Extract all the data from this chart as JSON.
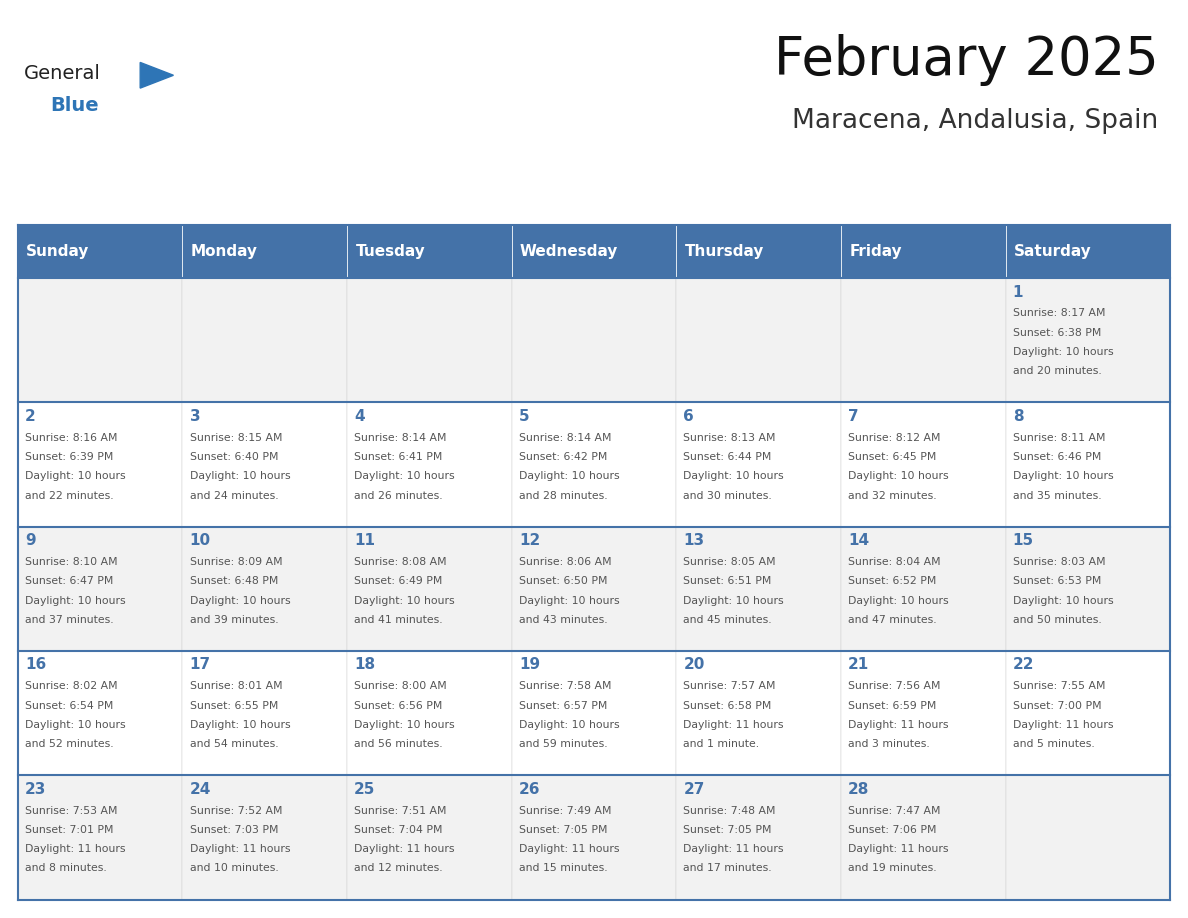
{
  "title": "February 2025",
  "subtitle": "Maracena, Andalusia, Spain",
  "header_bg": "#4472a8",
  "header_text_color": "#ffffff",
  "cell_bg_light": "#f2f2f2",
  "cell_bg_white": "#ffffff",
  "day_text_color": "#4472a8",
  "info_text_color": "#555555",
  "border_color": "#4472a8",
  "days_of_week": [
    "Sunday",
    "Monday",
    "Tuesday",
    "Wednesday",
    "Thursday",
    "Friday",
    "Saturday"
  ],
  "calendar_data": [
    [
      null,
      null,
      null,
      null,
      null,
      null,
      {
        "day": 1,
        "sunrise": "8:17 AM",
        "sunset": "6:38 PM",
        "daylight": "10 hours and 20 minutes."
      }
    ],
    [
      {
        "day": 2,
        "sunrise": "8:16 AM",
        "sunset": "6:39 PM",
        "daylight": "10 hours and 22 minutes."
      },
      {
        "day": 3,
        "sunrise": "8:15 AM",
        "sunset": "6:40 PM",
        "daylight": "10 hours and 24 minutes."
      },
      {
        "day": 4,
        "sunrise": "8:14 AM",
        "sunset": "6:41 PM",
        "daylight": "10 hours and 26 minutes."
      },
      {
        "day": 5,
        "sunrise": "8:14 AM",
        "sunset": "6:42 PM",
        "daylight": "10 hours and 28 minutes."
      },
      {
        "day": 6,
        "sunrise": "8:13 AM",
        "sunset": "6:44 PM",
        "daylight": "10 hours and 30 minutes."
      },
      {
        "day": 7,
        "sunrise": "8:12 AM",
        "sunset": "6:45 PM",
        "daylight": "10 hours and 32 minutes."
      },
      {
        "day": 8,
        "sunrise": "8:11 AM",
        "sunset": "6:46 PM",
        "daylight": "10 hours and 35 minutes."
      }
    ],
    [
      {
        "day": 9,
        "sunrise": "8:10 AM",
        "sunset": "6:47 PM",
        "daylight": "10 hours and 37 minutes."
      },
      {
        "day": 10,
        "sunrise": "8:09 AM",
        "sunset": "6:48 PM",
        "daylight": "10 hours and 39 minutes."
      },
      {
        "day": 11,
        "sunrise": "8:08 AM",
        "sunset": "6:49 PM",
        "daylight": "10 hours and 41 minutes."
      },
      {
        "day": 12,
        "sunrise": "8:06 AM",
        "sunset": "6:50 PM",
        "daylight": "10 hours and 43 minutes."
      },
      {
        "day": 13,
        "sunrise": "8:05 AM",
        "sunset": "6:51 PM",
        "daylight": "10 hours and 45 minutes."
      },
      {
        "day": 14,
        "sunrise": "8:04 AM",
        "sunset": "6:52 PM",
        "daylight": "10 hours and 47 minutes."
      },
      {
        "day": 15,
        "sunrise": "8:03 AM",
        "sunset": "6:53 PM",
        "daylight": "10 hours and 50 minutes."
      }
    ],
    [
      {
        "day": 16,
        "sunrise": "8:02 AM",
        "sunset": "6:54 PM",
        "daylight": "10 hours and 52 minutes."
      },
      {
        "day": 17,
        "sunrise": "8:01 AM",
        "sunset": "6:55 PM",
        "daylight": "10 hours and 54 minutes."
      },
      {
        "day": 18,
        "sunrise": "8:00 AM",
        "sunset": "6:56 PM",
        "daylight": "10 hours and 56 minutes."
      },
      {
        "day": 19,
        "sunrise": "7:58 AM",
        "sunset": "6:57 PM",
        "daylight": "10 hours and 59 minutes."
      },
      {
        "day": 20,
        "sunrise": "7:57 AM",
        "sunset": "6:58 PM",
        "daylight": "11 hours and 1 minute."
      },
      {
        "day": 21,
        "sunrise": "7:56 AM",
        "sunset": "6:59 PM",
        "daylight": "11 hours and 3 minutes."
      },
      {
        "day": 22,
        "sunrise": "7:55 AM",
        "sunset": "7:00 PM",
        "daylight": "11 hours and 5 minutes."
      }
    ],
    [
      {
        "day": 23,
        "sunrise": "7:53 AM",
        "sunset": "7:01 PM",
        "daylight": "11 hours and 8 minutes."
      },
      {
        "day": 24,
        "sunrise": "7:52 AM",
        "sunset": "7:03 PM",
        "daylight": "11 hours and 10 minutes."
      },
      {
        "day": 25,
        "sunrise": "7:51 AM",
        "sunset": "7:04 PM",
        "daylight": "11 hours and 12 minutes."
      },
      {
        "day": 26,
        "sunrise": "7:49 AM",
        "sunset": "7:05 PM",
        "daylight": "11 hours and 15 minutes."
      },
      {
        "day": 27,
        "sunrise": "7:48 AM",
        "sunset": "7:05 PM",
        "daylight": "11 hours and 17 minutes."
      },
      {
        "day": 28,
        "sunrise": "7:47 AM",
        "sunset": "7:06 PM",
        "daylight": "11 hours and 19 minutes."
      },
      null
    ]
  ],
  "logo_text_general": "General",
  "logo_text_blue": "Blue",
  "logo_triangle_color": "#2e75b6",
  "logo_general_color": "#222222"
}
